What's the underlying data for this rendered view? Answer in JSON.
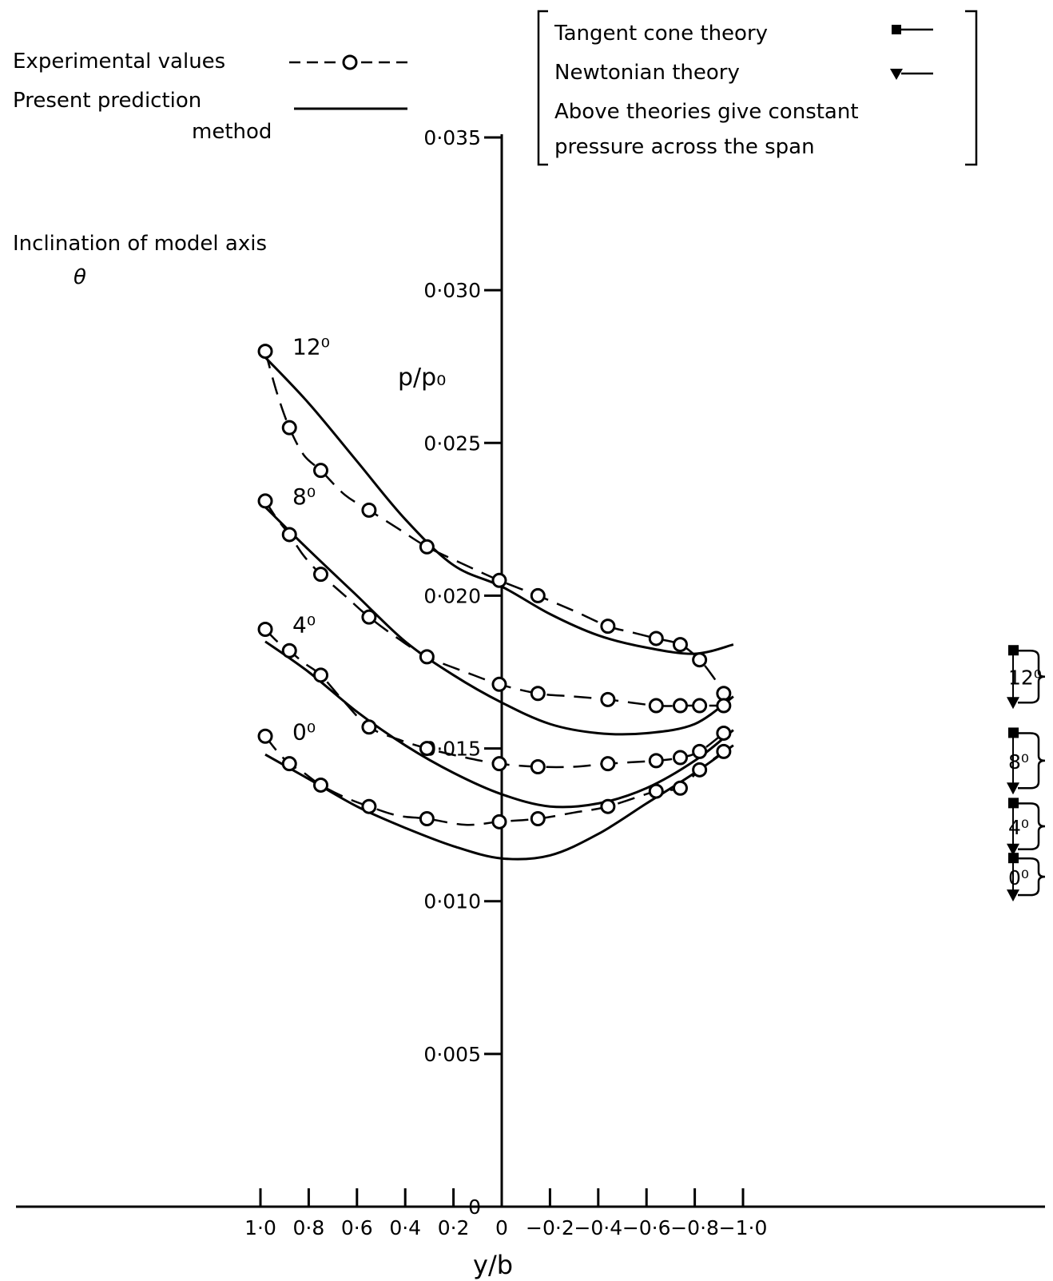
{
  "chart_data": {
    "type": "line",
    "xlabel": "y/b",
    "ylabel": "p/p₀",
    "xlim": [
      1.0,
      -1.0
    ],
    "ylim": [
      0,
      0.035
    ],
    "x_tick_labels": [
      "1·0",
      "0·8",
      "0·6",
      "0·4",
      "0·2",
      "0",
      "−0·2",
      "−0·4",
      "−0·6",
      "−0·8",
      "−1·0"
    ],
    "y_tick_labels": [
      "0",
      "0·005",
      "0·010",
      "0·015",
      "0·020",
      "0·025",
      "0·030",
      "0·035"
    ],
    "y_tick_values": [
      0,
      0.005,
      0.01,
      0.015,
      0.02,
      0.025,
      0.03,
      0.035
    ],
    "legend": {
      "experimental": "Experimental values",
      "prediction_line1": "Present prediction",
      "prediction_line2": "method",
      "tangent_cone": "Tangent cone theory",
      "newtonian": "Newtonian theory",
      "note_line1": "Above theories give constant",
      "note_line2": "pressure across the span"
    },
    "inclination_title": "Inclination of model axis",
    "inclination_symbol": "θ",
    "series": [
      {
        "label": "12⁰",
        "angle_label": "12⁰",
        "experimental": [
          [
            0.98,
            0.028
          ],
          [
            0.88,
            0.0255
          ],
          [
            0.75,
            0.0241
          ],
          [
            0.55,
            0.0228
          ],
          [
            0.31,
            0.0216
          ],
          [
            0.01,
            0.0205
          ],
          [
            -0.15,
            0.02
          ],
          [
            -0.44,
            0.019
          ],
          [
            -0.64,
            0.0186
          ],
          [
            -0.74,
            0.0184
          ],
          [
            -0.82,
            0.0179
          ],
          [
            -0.92,
            0.0168
          ]
        ],
        "experimental_curve": [
          [
            0.98,
            0.028
          ],
          [
            0.93,
            0.0266
          ],
          [
            0.88,
            0.0255
          ],
          [
            0.82,
            0.0246
          ],
          [
            0.75,
            0.0241
          ],
          [
            0.65,
            0.0233
          ],
          [
            0.55,
            0.0228
          ],
          [
            0.43,
            0.0222
          ],
          [
            0.31,
            0.0216
          ],
          [
            0.15,
            0.021
          ],
          [
            0.01,
            0.0205
          ],
          [
            -0.15,
            0.02
          ],
          [
            -0.3,
            0.0195
          ],
          [
            -0.44,
            0.019
          ],
          [
            -0.54,
            0.0188
          ],
          [
            -0.64,
            0.0186
          ],
          [
            -0.74,
            0.0184
          ],
          [
            -0.82,
            0.0179
          ],
          [
            -0.88,
            0.0173
          ],
          [
            -0.92,
            0.0168
          ]
        ],
        "prediction": [
          [
            0.98,
            0.0278
          ],
          [
            0.8,
            0.0263
          ],
          [
            0.6,
            0.0244
          ],
          [
            0.4,
            0.0225
          ],
          [
            0.2,
            0.021
          ],
          [
            0.0,
            0.0203
          ],
          [
            -0.2,
            0.0194
          ],
          [
            -0.4,
            0.0187
          ],
          [
            -0.6,
            0.0183
          ],
          [
            -0.8,
            0.0181
          ],
          [
            -0.96,
            0.0184
          ]
        ],
        "tangent_cone": 0.0182,
        "newtonian": 0.0165
      },
      {
        "label": "8⁰",
        "angle_label": "8⁰",
        "experimental": [
          [
            0.98,
            0.0231
          ],
          [
            0.88,
            0.022
          ],
          [
            0.75,
            0.0207
          ],
          [
            0.55,
            0.0193
          ],
          [
            0.31,
            0.018
          ],
          [
            0.01,
            0.0171
          ],
          [
            -0.15,
            0.0168
          ],
          [
            -0.44,
            0.0166
          ],
          [
            -0.64,
            0.0164
          ],
          [
            -0.74,
            0.0164
          ],
          [
            -0.82,
            0.0164
          ],
          [
            -0.92,
            0.0164
          ]
        ],
        "experimental_curve": [
          [
            0.98,
            0.0231
          ],
          [
            0.93,
            0.0225
          ],
          [
            0.88,
            0.022
          ],
          [
            0.82,
            0.0213
          ],
          [
            0.75,
            0.0207
          ],
          [
            0.65,
            0.02
          ],
          [
            0.55,
            0.0193
          ],
          [
            0.43,
            0.0186
          ],
          [
            0.31,
            0.018
          ],
          [
            0.15,
            0.0175
          ],
          [
            0.01,
            0.0171
          ],
          [
            -0.15,
            0.0168
          ],
          [
            -0.3,
            0.0167
          ],
          [
            -0.44,
            0.0166
          ],
          [
            -0.64,
            0.0164
          ],
          [
            -0.74,
            0.0164
          ],
          [
            -0.82,
            0.0164
          ],
          [
            -0.92,
            0.0164
          ]
        ],
        "prediction": [
          [
            0.98,
            0.0229
          ],
          [
            0.8,
            0.0215
          ],
          [
            0.6,
            0.02
          ],
          [
            0.4,
            0.0185
          ],
          [
            0.2,
            0.0174
          ],
          [
            0.0,
            0.0165
          ],
          [
            -0.2,
            0.0158
          ],
          [
            -0.4,
            0.0155
          ],
          [
            -0.6,
            0.0155
          ],
          [
            -0.8,
            0.0158
          ],
          [
            -0.96,
            0.0167
          ]
        ],
        "tangent_cone": 0.0155,
        "newtonian": 0.0137
      },
      {
        "label": "4⁰",
        "angle_label": "4⁰",
        "experimental": [
          [
            0.98,
            0.0189
          ],
          [
            0.88,
            0.0182
          ],
          [
            0.75,
            0.0174
          ],
          [
            0.55,
            0.0157
          ],
          [
            0.31,
            0.015
          ],
          [
            0.01,
            0.0145
          ],
          [
            -0.15,
            0.0144
          ],
          [
            -0.44,
            0.0145
          ],
          [
            -0.64,
            0.0146
          ],
          [
            -0.74,
            0.0147
          ],
          [
            -0.82,
            0.0149
          ],
          [
            -0.92,
            0.0155
          ]
        ],
        "experimental_curve": [
          [
            0.98,
            0.0189
          ],
          [
            0.93,
            0.0185
          ],
          [
            0.88,
            0.0182
          ],
          [
            0.82,
            0.0178
          ],
          [
            0.75,
            0.0174
          ],
          [
            0.65,
            0.0165
          ],
          [
            0.55,
            0.0157
          ],
          [
            0.43,
            0.0153
          ],
          [
            0.31,
            0.015
          ],
          [
            0.15,
            0.0147
          ],
          [
            0.01,
            0.0145
          ],
          [
            -0.15,
            0.0144
          ],
          [
            -0.3,
            0.0144
          ],
          [
            -0.44,
            0.0145
          ],
          [
            -0.64,
            0.0146
          ],
          [
            -0.74,
            0.0147
          ],
          [
            -0.82,
            0.0149
          ],
          [
            -0.92,
            0.0155
          ]
        ],
        "prediction": [
          [
            0.98,
            0.0185
          ],
          [
            0.8,
            0.0175
          ],
          [
            0.6,
            0.0162
          ],
          [
            0.4,
            0.0151
          ],
          [
            0.2,
            0.0142
          ],
          [
            0.0,
            0.0135
          ],
          [
            -0.2,
            0.0131
          ],
          [
            -0.4,
            0.0132
          ],
          [
            -0.6,
            0.0137
          ],
          [
            -0.8,
            0.0146
          ],
          [
            -0.96,
            0.0156
          ]
        ],
        "tangent_cone": 0.0132,
        "newtonian": 0.0117
      },
      {
        "label": "0⁰",
        "angle_label": "0⁰",
        "experimental": [
          [
            0.98,
            0.0154
          ],
          [
            0.88,
            0.0145
          ],
          [
            0.75,
            0.0138
          ],
          [
            0.55,
            0.0131
          ],
          [
            0.31,
            0.0127
          ],
          [
            0.01,
            0.0126
          ],
          [
            -0.15,
            0.0127
          ],
          [
            -0.44,
            0.0131
          ],
          [
            -0.64,
            0.0136
          ],
          [
            -0.74,
            0.0137
          ],
          [
            -0.82,
            0.0143
          ],
          [
            -0.92,
            0.0149
          ]
        ],
        "experimental_curve": [
          [
            0.98,
            0.0154
          ],
          [
            0.93,
            0.0149
          ],
          [
            0.88,
            0.0145
          ],
          [
            0.82,
            0.0142
          ],
          [
            0.75,
            0.0138
          ],
          [
            0.65,
            0.0134
          ],
          [
            0.55,
            0.0131
          ],
          [
            0.43,
            0.0128
          ],
          [
            0.31,
            0.0127
          ],
          [
            0.15,
            0.0125
          ],
          [
            0.01,
            0.0126
          ],
          [
            -0.15,
            0.0127
          ],
          [
            -0.3,
            0.0129
          ],
          [
            -0.44,
            0.0131
          ],
          [
            -0.64,
            0.0136
          ],
          [
            -0.74,
            0.0137
          ],
          [
            -0.82,
            0.0143
          ],
          [
            -0.92,
            0.0149
          ]
        ],
        "prediction": [
          [
            0.98,
            0.0148
          ],
          [
            0.8,
            0.014
          ],
          [
            0.6,
            0.0131
          ],
          [
            0.4,
            0.0124
          ],
          [
            0.2,
            0.0118
          ],
          [
            0.0,
            0.0114
          ],
          [
            -0.2,
            0.0115
          ],
          [
            -0.4,
            0.0122
          ],
          [
            -0.6,
            0.0132
          ],
          [
            -0.8,
            0.0142
          ],
          [
            -0.96,
            0.0151
          ]
        ],
        "tangent_cone": 0.0114,
        "newtonian": 0.0102
      }
    ]
  }
}
